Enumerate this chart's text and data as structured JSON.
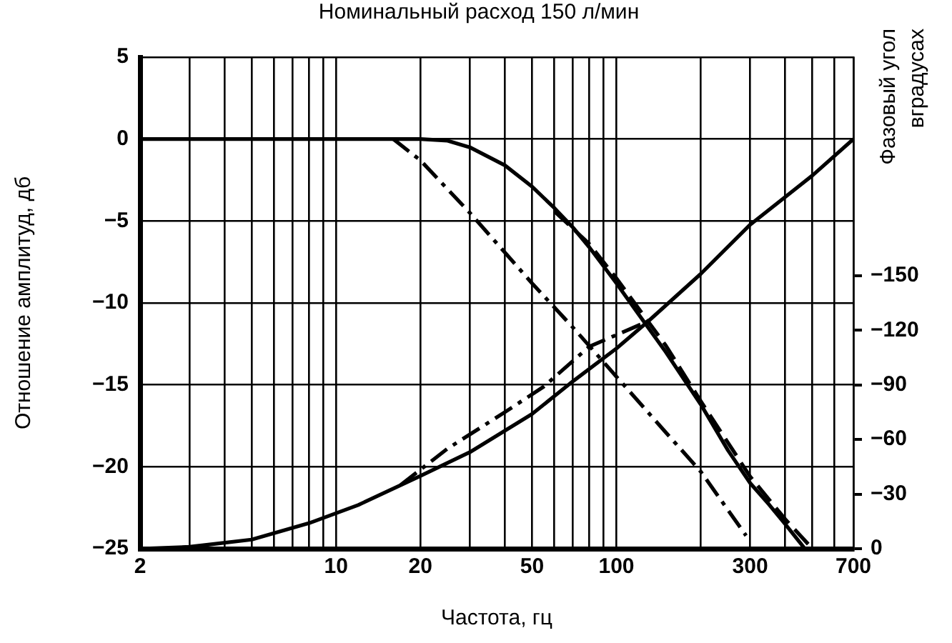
{
  "chart_data": {
    "type": "line",
    "title": "Номинальный расход 150 л/мин",
    "xlabel": "Частота, гц",
    "ylabel": "Отношение амплитуд, дб",
    "y2label": "Фазовый угол\nвградусах",
    "log": "x",
    "grid": true,
    "legend": false,
    "marker": "none",
    "xlim": [
      2,
      700
    ],
    "xticks": [
      2,
      {
        "value": 3,
        "label": null
      },
      {
        "value": 4,
        "label": null
      },
      {
        "value": 5,
        "label": null
      },
      {
        "value": 6,
        "label": null
      },
      {
        "value": 7,
        "label": null
      },
      {
        "value": 8,
        "label": null
      },
      {
        "value": 9,
        "label": null
      },
      10,
      20,
      {
        "value": 30,
        "label": null
      },
      {
        "value": 40,
        "label": null
      },
      50,
      {
        "value": 60,
        "label": null
      },
      {
        "value": 70,
        "label": null
      },
      {
        "value": 80,
        "label": null
      },
      {
        "value": 90,
        "label": null
      },
      100,
      {
        "value": 200,
        "label": null
      },
      300,
      {
        "value": 400,
        "label": null
      },
      {
        "value": 500,
        "label": null
      },
      {
        "value": 600,
        "label": null
      },
      700
    ],
    "ylim": [
      -25,
      5
    ],
    "yticks": [
      -25,
      -20,
      -15,
      -10,
      -5,
      0,
      5
    ],
    "y2lim": [
      0,
      -270
    ],
    "y2ticks": [
      0,
      -30,
      -60,
      -90,
      -120,
      -150
    ],
    "series": [
      {
        "color": "#000000",
        "line_style": "solid",
        "x": [
          2,
          20,
          25,
          30,
          40,
          50,
          60,
          70,
          80,
          100,
          120,
          150,
          200,
          250,
          300,
          350,
          400,
          470
        ],
        "values": [
          0,
          0,
          -0.1,
          -0.5,
          -1.6,
          -2.9,
          -4.2,
          -5.4,
          -6.6,
          -8.8,
          -10.7,
          -13,
          -16.2,
          -19,
          -21,
          -22.3,
          -23.5,
          -25
        ]
      },
      {
        "color": "#000000",
        "line_style": "dashed",
        "x": [
          60,
          80,
          100,
          150,
          200,
          300,
          400,
          500
        ],
        "values": [
          -4.4,
          -6.4,
          -8.5,
          -12.6,
          -16,
          -20.6,
          -23.2,
          -25
        ]
      },
      {
        "color": "#000000",
        "line_style": "dashdot",
        "x": [
          16,
          20,
          30,
          50,
          70,
          100,
          150,
          200,
          290
        ],
        "values": [
          0,
          -1.3,
          -4.5,
          -8.8,
          -11.5,
          -14.5,
          -17.9,
          -20.3,
          -24.2
        ]
      },
      {
        "color": "#000000",
        "line_style": "solid",
        "axis": "y2",
        "x": [
          2,
          3,
          5,
          8,
          12,
          16,
          20,
          30,
          50,
          70,
          100,
          130,
          200,
          300,
          500,
          700
        ],
        "values": [
          0,
          -1,
          -5,
          -14,
          -24,
          -33,
          -40,
          -53,
          -74,
          -92,
          -110,
          -125,
          -151,
          -178,
          -205,
          -225
        ]
      },
      {
        "color": "#000000",
        "line_style": "dashdot",
        "axis": "y2",
        "x": [
          17,
          25,
          40,
          55,
          80,
          130
        ],
        "values": [
          -35,
          -55,
          -75,
          -89,
          -111,
          -125
        ]
      }
    ]
  }
}
